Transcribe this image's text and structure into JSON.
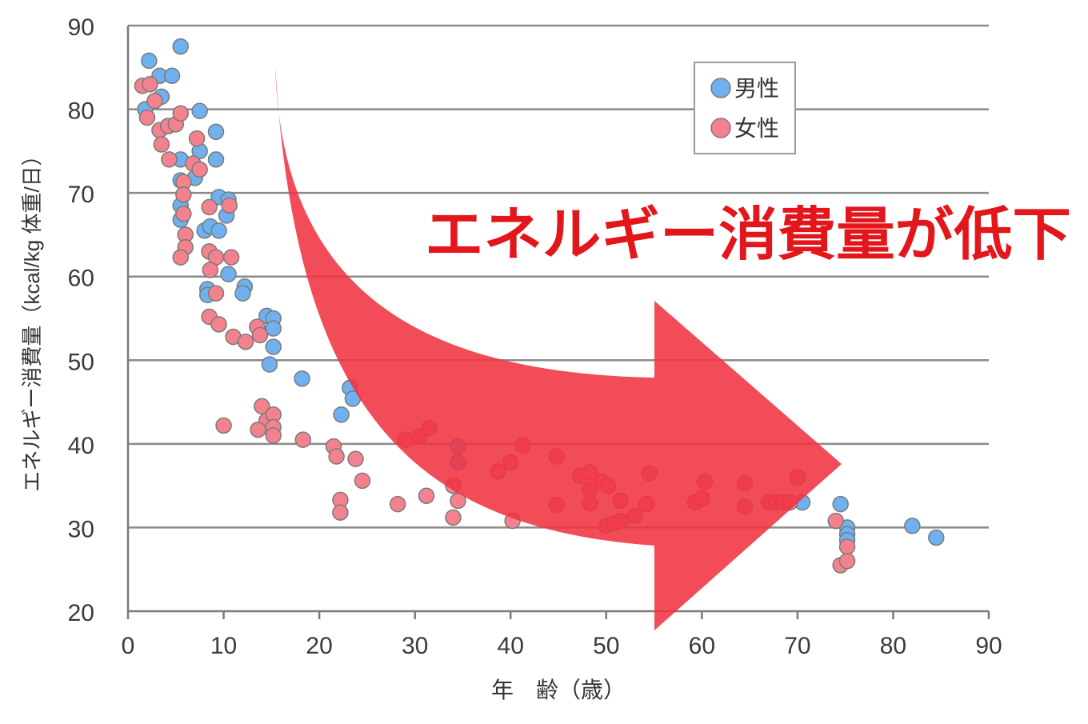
{
  "chart_data": {
    "type": "scatter",
    "title": "",
    "annotation": "エネルギー消費量が低下",
    "xlabel": "年　齢（歳）",
    "ylabel": "エネルギー消費量（kcal/kg 体重/日）",
    "xlim": [
      0,
      90
    ],
    "ylim": [
      20,
      90
    ],
    "xticks": [
      "0",
      "10",
      "20",
      "30",
      "40",
      "50",
      "60",
      "70",
      "80",
      "90"
    ],
    "yticks": [
      "20",
      "30",
      "40",
      "50",
      "60",
      "70",
      "80",
      "90"
    ],
    "grid": "horizontal",
    "legend_position": "top-right",
    "series": [
      {
        "name": "男性",
        "color": "#6fb1ee",
        "points": [
          [
            2.2,
            85.8
          ],
          [
            5.5,
            87.5
          ],
          [
            3.3,
            84
          ],
          [
            4.6,
            84
          ],
          [
            1.8,
            80
          ],
          [
            3.5,
            81.5
          ],
          [
            4.2,
            78
          ],
          [
            7.5,
            79.8
          ],
          [
            7.5,
            75
          ],
          [
            5.5,
            74
          ],
          [
            9.2,
            77.3
          ],
          [
            9.2,
            74
          ],
          [
            5.5,
            71.5
          ],
          [
            7,
            71.8
          ],
          [
            9.5,
            69.5
          ],
          [
            10.5,
            69.2
          ],
          [
            5.5,
            68.5
          ],
          [
            5.5,
            66.8
          ],
          [
            10.3,
            67.3
          ],
          [
            8,
            65.5
          ],
          [
            8.6,
            66
          ],
          [
            9.5,
            65.5
          ],
          [
            8.5,
            63
          ],
          [
            10.5,
            60.3
          ],
          [
            12.2,
            58.8
          ],
          [
            8.3,
            58.5
          ],
          [
            8.3,
            57.8
          ],
          [
            12,
            58
          ],
          [
            14.5,
            55.3
          ],
          [
            15.2,
            55
          ],
          [
            15.2,
            53.8
          ],
          [
            15.2,
            51.6
          ],
          [
            14.8,
            49.5
          ],
          [
            18.2,
            47.8
          ],
          [
            23.2,
            46.7
          ],
          [
            23.5,
            45.4
          ],
          [
            22.3,
            43.5
          ],
          [
            34.5,
            39.7
          ],
          [
            34.5,
            37.8
          ],
          [
            70.5,
            33
          ],
          [
            74.5,
            32.8
          ],
          [
            75.2,
            30
          ],
          [
            75.2,
            29.2
          ],
          [
            75.2,
            28.5
          ],
          [
            82,
            30.2
          ],
          [
            84.5,
            28.8
          ]
        ]
      },
      {
        "name": "女性",
        "color": "#f4828e",
        "points": [
          [
            1.5,
            82.8
          ],
          [
            2.3,
            83
          ],
          [
            2.8,
            81
          ],
          [
            2,
            79
          ],
          [
            3.3,
            77.5
          ],
          [
            4.2,
            78
          ],
          [
            5,
            78.2
          ],
          [
            5.5,
            79.5
          ],
          [
            3.5,
            75.8
          ],
          [
            4.3,
            74
          ],
          [
            7.2,
            76.5
          ],
          [
            6.8,
            73.5
          ],
          [
            7.5,
            72.8
          ],
          [
            5.8,
            71.3
          ],
          [
            5.8,
            69.8
          ],
          [
            5.8,
            67.5
          ],
          [
            8.5,
            68.3
          ],
          [
            10.6,
            68.5
          ],
          [
            6,
            65
          ],
          [
            6,
            63.5
          ],
          [
            5.5,
            62.3
          ],
          [
            8.5,
            63
          ],
          [
            9.2,
            62.3
          ],
          [
            10.8,
            62.3
          ],
          [
            8.6,
            60.8
          ],
          [
            9.2,
            58
          ],
          [
            8.5,
            55.2
          ],
          [
            9.5,
            54.3
          ],
          [
            11,
            52.8
          ],
          [
            12.3,
            52.2
          ],
          [
            13.5,
            54
          ],
          [
            13.8,
            53
          ],
          [
            14,
            44.5
          ],
          [
            14.5,
            42.8
          ],
          [
            15.2,
            43.5
          ],
          [
            15.2,
            42
          ],
          [
            13.6,
            41.7
          ],
          [
            15.2,
            41
          ],
          [
            10,
            42.2
          ],
          [
            18.3,
            40.5
          ],
          [
            21.5,
            39.7
          ],
          [
            21.8,
            38.5
          ],
          [
            23.8,
            38.2
          ],
          [
            24.5,
            35.6
          ],
          [
            22.2,
            33.3
          ],
          [
            22.2,
            31.8
          ],
          [
            28.2,
            32.8
          ],
          [
            29,
            40.5
          ],
          [
            30.5,
            40.9
          ],
          [
            31.5,
            41.9
          ],
          [
            31.2,
            33.8
          ],
          [
            34,
            35
          ],
          [
            34.5,
            33.2
          ],
          [
            34,
            31.2
          ],
          [
            38.7,
            36.7
          ],
          [
            40,
            37.8
          ],
          [
            41.3,
            39.8
          ],
          [
            40.2,
            30.8
          ],
          [
            44.8,
            38.5
          ],
          [
            44.8,
            32.7
          ],
          [
            47.3,
            36.2
          ],
          [
            48.3,
            36.6
          ],
          [
            48.3,
            34.5
          ],
          [
            48.3,
            32.9
          ],
          [
            49.5,
            35.5
          ],
          [
            50.2,
            35
          ],
          [
            51.5,
            33.2
          ],
          [
            50,
            30.2
          ],
          [
            50.8,
            30.5
          ],
          [
            51.5,
            30.8
          ],
          [
            53,
            31.4
          ],
          [
            54.2,
            32.8
          ],
          [
            54.5,
            36.5
          ],
          [
            59.3,
            33
          ],
          [
            60,
            33.5
          ],
          [
            60.3,
            35.5
          ],
          [
            64.5,
            35.3
          ],
          [
            64.5,
            32.5
          ],
          [
            67,
            33
          ],
          [
            67.8,
            33
          ],
          [
            68.5,
            33
          ],
          [
            69.2,
            33
          ],
          [
            70,
            36
          ],
          [
            74,
            30.8
          ],
          [
            74.5,
            25.5
          ],
          [
            75.2,
            27.7
          ],
          [
            75.2,
            26
          ]
        ]
      }
    ]
  }
}
